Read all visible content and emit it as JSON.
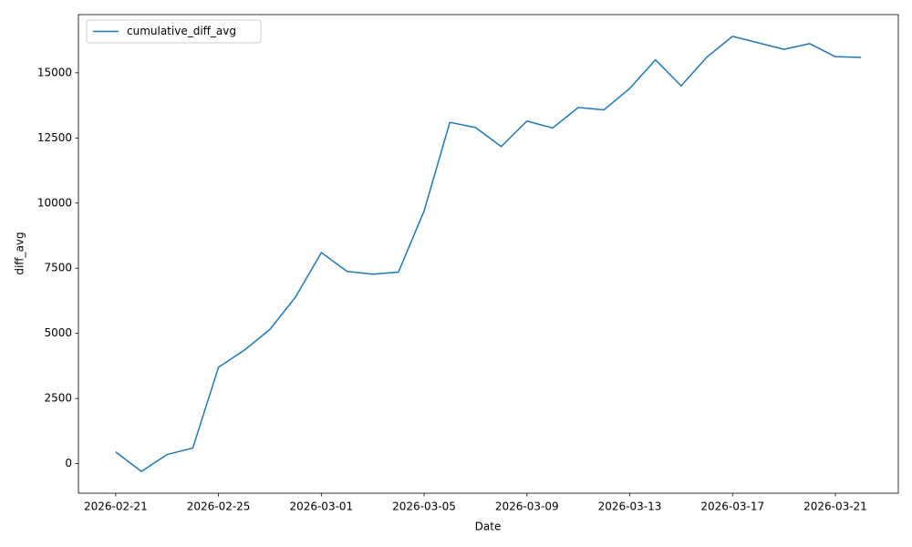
{
  "chart_data": {
    "type": "line",
    "xlabel": "Date",
    "ylabel": "diff_avg",
    "x": [
      "2026-02-21",
      "2026-02-22",
      "2026-02-23",
      "2026-02-24",
      "2026-02-25",
      "2026-02-26",
      "2026-02-27",
      "2026-02-28",
      "2026-03-01",
      "2026-03-02",
      "2026-03-03",
      "2026-03-04",
      "2026-03-05",
      "2026-03-06",
      "2026-03-07",
      "2026-03-08",
      "2026-03-09",
      "2026-03-10",
      "2026-03-11",
      "2026-03-12",
      "2026-03-13",
      "2026-03-14",
      "2026-03-15",
      "2026-03-16",
      "2026-03-17",
      "2026-03-18",
      "2026-03-19",
      "2026-03-20",
      "2026-03-21",
      "2026-03-22"
    ],
    "series": [
      {
        "name": "cumulative_diff_avg",
        "color": "#1f77b4",
        "values": [
          450,
          -300,
          350,
          600,
          3700,
          4350,
          5150,
          6400,
          8100,
          7380,
          7270,
          7350,
          9700,
          13100,
          12900,
          12170,
          13150,
          12880,
          13670,
          13580,
          14400,
          15500,
          14500,
          15600,
          16400,
          16150,
          15900,
          16120,
          15620,
          15590
        ]
      }
    ],
    "xlim": [
      "2026-02-19T13:12",
      "2026-03-23T10:48"
    ],
    "xticks": [
      "2026-02-21",
      "2026-02-25",
      "2026-03-01",
      "2026-03-05",
      "2026-03-09",
      "2026-03-13",
      "2026-03-17",
      "2026-03-21"
    ],
    "ylim": [
      -1135,
      17235
    ],
    "yticks": [
      0,
      2500,
      5000,
      7500,
      10000,
      12500,
      15000
    ],
    "grid": false,
    "legend": "upper left"
  }
}
